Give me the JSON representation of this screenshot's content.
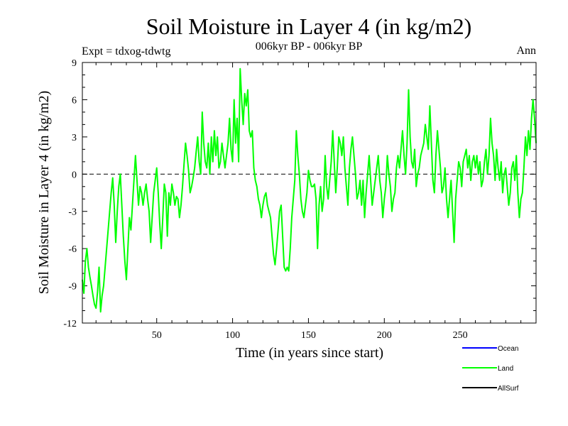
{
  "chart_data": {
    "type": "line",
    "title": "Soil Moisture in Layer 4 (in kg/m2)",
    "subtitle": "006kyr BP - 006kyr BP",
    "experiment_label": "Expt = tdxog-tdwtg",
    "season_label": "Ann",
    "xlabel": "Time (in years since start)",
    "ylabel": "Soil Moisture in Layer 4 (in kg/m2)",
    "xlim": [
      1,
      300
    ],
    "ylim": [
      -12,
      9
    ],
    "x_ticks": [
      50,
      100,
      150,
      200,
      250
    ],
    "x_tick_labels": [
      "50",
      "100",
      "150",
      "200",
      "250"
    ],
    "y_ticks": [
      9,
      6,
      3,
      0,
      -3,
      -6,
      -9,
      -12
    ],
    "y_tick_labels": [
      "9",
      "6",
      "3",
      "0",
      "-3",
      "-6",
      "-9",
      "-12"
    ],
    "zero_line": 0,
    "legend": [
      {
        "name": "Ocean",
        "color": "#0000ff"
      },
      {
        "name": "Land",
        "color": "#00ff00"
      },
      {
        "name": "AllSurf",
        "color": "#000000"
      }
    ],
    "series": [
      {
        "name": "Land",
        "color": "#00ff00",
        "x_start": 1,
        "x_step": 1,
        "values": [
          -8.5,
          -9.6,
          -7.0,
          -6.0,
          -7.5,
          -8.3,
          -9.0,
          -9.8,
          -10.5,
          -10.8,
          -9.5,
          -7.5,
          -11.1,
          -9.8,
          -9.0,
          -7.5,
          -6.0,
          -4.5,
          -3.0,
          -1.5,
          -0.3,
          -2.5,
          -5.5,
          -3.0,
          -1.0,
          0.0,
          -2.5,
          -5.0,
          -7.0,
          -8.5,
          -6.0,
          -3.5,
          -4.5,
          -2.5,
          -0.5,
          1.5,
          -0.5,
          -2.5,
          -1.0,
          -1.5,
          -2.5,
          -1.5,
          -0.8,
          -2.0,
          -3.0,
          -5.5,
          -3.5,
          -1.5,
          -0.5,
          0.5,
          -1.5,
          -4.0,
          -6.0,
          -3.5,
          -0.8,
          -1.5,
          -5.0,
          -1.5,
          -2.5,
          -0.8,
          -1.5,
          -2.5,
          -1.8,
          -2.0,
          -3.5,
          -2.5,
          -1.0,
          0.8,
          2.5,
          1.5,
          0.3,
          -1.5,
          -1.0,
          -0.3,
          0.5,
          1.8,
          3.0,
          1.0,
          0.0,
          5.0,
          2.5,
          1.0,
          0.5,
          2.5,
          0.0,
          3.0,
          1.0,
          3.5,
          1.5,
          3.0,
          0.5,
          1.0,
          2.5,
          1.5,
          0.5,
          1.5,
          2.5,
          4.5,
          2.0,
          1.0,
          6.0,
          2.5,
          4.5,
          1.0,
          8.5,
          6.0,
          4.0,
          6.5,
          5.5,
          6.8,
          3.5,
          3.0,
          3.5,
          0.5,
          -0.5,
          -1.0,
          -2.0,
          -2.5,
          -3.5,
          -2.5,
          -1.8,
          -1.5,
          -2.5,
          -3.0,
          -3.5,
          -5.0,
          -6.5,
          -7.3,
          -6.0,
          -4.5,
          -3.0,
          -2.5,
          -5.0,
          -7.5,
          -7.8,
          -7.5,
          -7.8,
          -6.0,
          -3.5,
          -2.0,
          -0.5,
          3.5,
          1.5,
          0.0,
          -2.0,
          -3.0,
          -3.5,
          -2.5,
          -1.5,
          0.3,
          -0.5,
          -1.0,
          -1.0,
          -0.8,
          -2.0,
          -6.0,
          -2.5,
          -1.0,
          -3.0,
          -2.0,
          1.5,
          -1.0,
          -2.0,
          -0.5,
          1.0,
          3.5,
          1.0,
          -1.5,
          0.5,
          3.0,
          2.5,
          1.5,
          3.0,
          0.5,
          -1.0,
          -2.5,
          0.5,
          2.0,
          3.0,
          1.5,
          0.0,
          -2.0,
          -1.5,
          -0.5,
          -2.5,
          -0.5,
          -3.5,
          -1.5,
          0.0,
          1.5,
          -0.5,
          -2.5,
          -1.5,
          -0.5,
          0.5,
          1.5,
          -0.5,
          -1.5,
          -3.5,
          -2.0,
          -1.0,
          1.5,
          0.0,
          -1.0,
          -3.0,
          -2.0,
          -1.5,
          0.5,
          1.5,
          0.5,
          2.0,
          3.5,
          1.5,
          0.0,
          2.5,
          6.8,
          3.0,
          1.0,
          0.5,
          2.0,
          -1.0,
          0.0,
          0.5,
          1.5,
          2.0,
          2.5,
          4.0,
          3.0,
          2.0,
          5.5,
          2.5,
          -0.5,
          -1.5,
          1.5,
          3.5,
          2.0,
          0.5,
          -1.5,
          -1.0,
          0.5,
          -2.0,
          -3.5,
          -2.0,
          -0.5,
          -3.0,
          -5.5,
          -2.0,
          -0.5,
          1.0,
          0.5,
          -1.0,
          1.0,
          1.5,
          2.0,
          0.5,
          1.5,
          -0.5,
          1.0,
          1.5,
          0.5,
          1.5,
          0.0,
          1.0,
          -1.0,
          -0.5,
          1.0,
          2.0,
          0.0,
          1.5,
          4.5,
          2.5,
          1.5,
          -0.5,
          2.0,
          0.5,
          -0.5,
          1.0,
          -1.5,
          0.0,
          0.5,
          -1.0,
          -2.5,
          -1.5,
          0.5,
          1.0,
          -0.5,
          1.5,
          -1.5,
          -3.5,
          -2.0,
          -1.5,
          0.5,
          3.0,
          1.5,
          3.5,
          2.0,
          4.5,
          6.0,
          4.5,
          2.5
        ]
      }
    ]
  }
}
